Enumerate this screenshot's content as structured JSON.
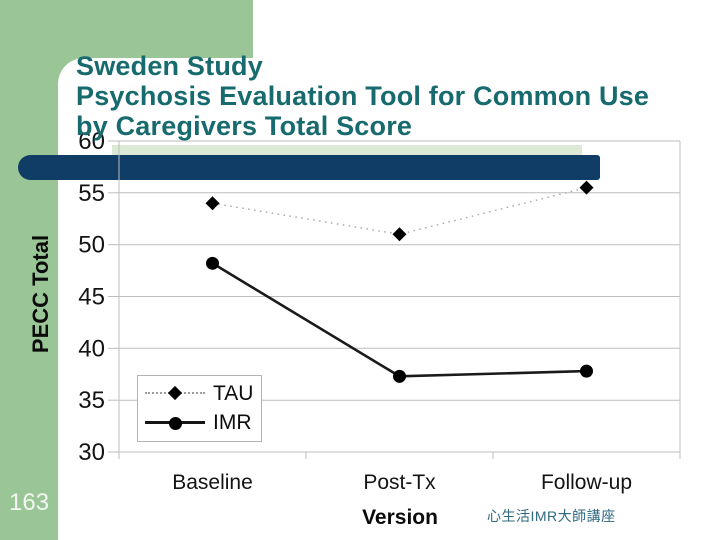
{
  "slide": {
    "title_lines": [
      "Sweden Study",
      "Psychosis Evaluation Tool for Common Use",
      "by Caregivers Total Score"
    ],
    "page_number": "163",
    "footer_text": "心生活IMR大師講座",
    "colors": {
      "sidebar_green": "#9AC697",
      "pale_green_strip": "#DCE9D4",
      "navy_bar": "#0F3D66",
      "title_teal": "#176A6D",
      "footer_teal": "#2E6880",
      "grid_gray": "#BDBDBD"
    }
  },
  "chart_data": {
    "type": "line",
    "title": "",
    "categories": [
      "Baseline",
      "Post-Tx",
      "Follow-up"
    ],
    "series": [
      {
        "name": "TAU",
        "values": [
          54,
          51,
          55.5
        ],
        "marker": "diamond",
        "line_style": "dotted",
        "line_color": "#A8A8A8",
        "marker_color": "#000000"
      },
      {
        "name": "IMR",
        "values": [
          48.2,
          37.3,
          37.8
        ],
        "marker": "circle",
        "line_style": "solid",
        "line_color": "#1A1A1A",
        "marker_color": "#000000"
      }
    ],
    "xlabel": "Version",
    "ylabel": "PECC Total",
    "ylim": [
      30,
      60
    ],
    "ytick_step": 5,
    "grid": true,
    "legend_position": "lower-left"
  }
}
